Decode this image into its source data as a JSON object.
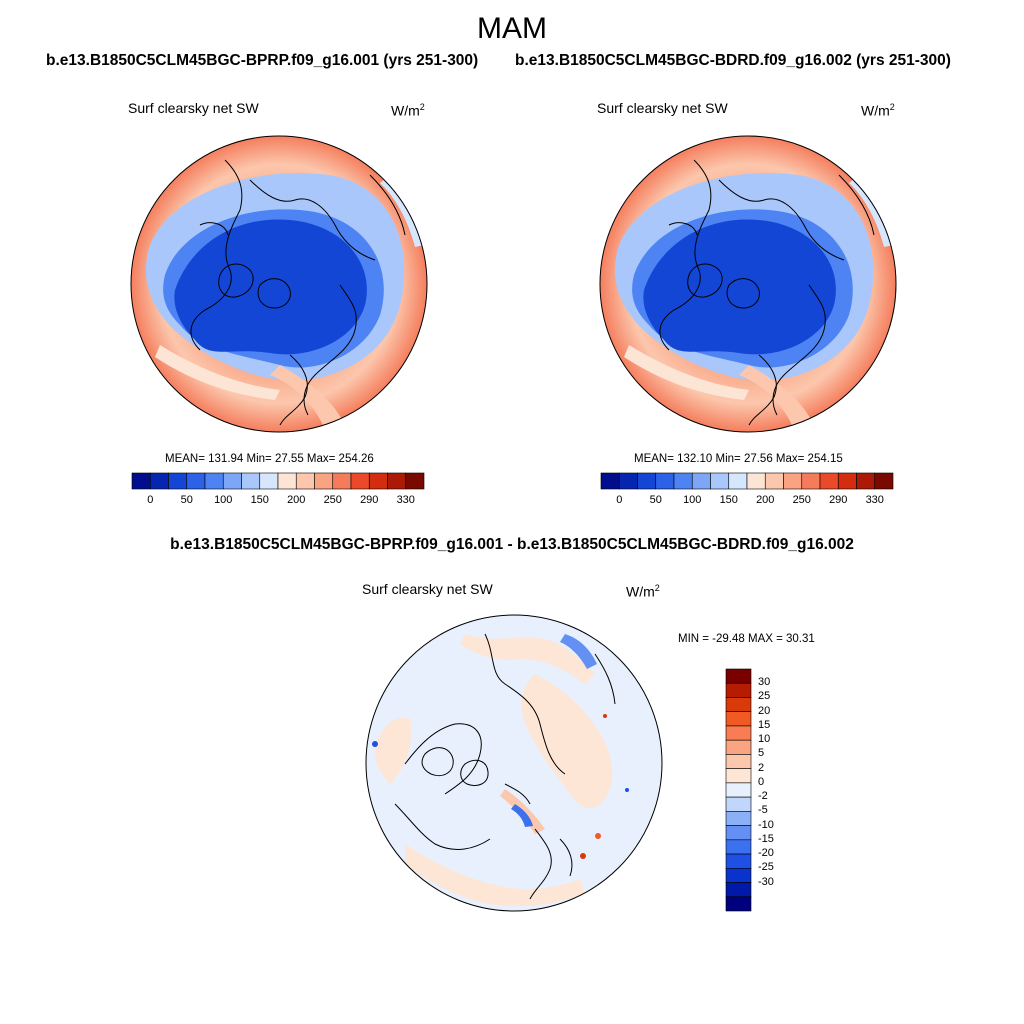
{
  "title": "MAM",
  "panels": [
    {
      "case": "b.e13.B1850C5CLM45BGC-BPRP.f09_g16.001 (yrs 251-300)",
      "variable": "Surf clearsky net SW",
      "units_base": "W/m",
      "units_exp": "2",
      "stats": "MEAN= 131.94  Min=  27.55  Max= 254.26"
    },
    {
      "case": "b.e13.B1850C5CLM45BGC-BDRD.f09_g16.002 (yrs 251-300)",
      "variable": "Surf clearsky net SW",
      "units_base": "W/m",
      "units_exp": "2",
      "stats": "MEAN= 132.10  Min=  27.56  Max= 254.15"
    }
  ],
  "diff_panel": {
    "case": "b.e13.B1850C5CLM45BGC-BPRP.f09_g16.001 - b.e13.B1850C5CLM45BGC-BDRD.f09_g16.002",
    "variable": "Surf clearsky net SW",
    "units_base": "W/m",
    "units_exp": "2",
    "stats": "MIN = -29.48 MAX =  30.31"
  },
  "abs_colorbar": {
    "colors": [
      "#000d8c",
      "#0527b0",
      "#1446d6",
      "#2b62e8",
      "#4d83f2",
      "#7da6f7",
      "#a9c7fb",
      "#d6e6fd",
      "#fde5d6",
      "#fcc7ad",
      "#f9a383",
      "#f47c5b",
      "#ea4a2a",
      "#d42c0f",
      "#aa1a06",
      "#7a0a00"
    ],
    "tick_labels": [
      "0",
      "50",
      "100",
      "150",
      "200",
      "250",
      "290",
      "330"
    ]
  },
  "diff_colorbar": {
    "colors": [
      "#00007f",
      "#0019a8",
      "#0a33cc",
      "#1f50e6",
      "#3b70ee",
      "#6390f2",
      "#8bb0f6",
      "#c1d6fb",
      "#e7f0fc",
      "#fde6d6",
      "#fcc8ad",
      "#fba482",
      "#f97c52",
      "#f15a22",
      "#d93a0a",
      "#b51c02",
      "#7a0000"
    ],
    "tick_labels": [
      "30",
      "25",
      "20",
      "15",
      "10",
      "5",
      "2",
      "0",
      "-2",
      "-5",
      "-10",
      "-15",
      "-20",
      "-25",
      "-30"
    ]
  }
}
